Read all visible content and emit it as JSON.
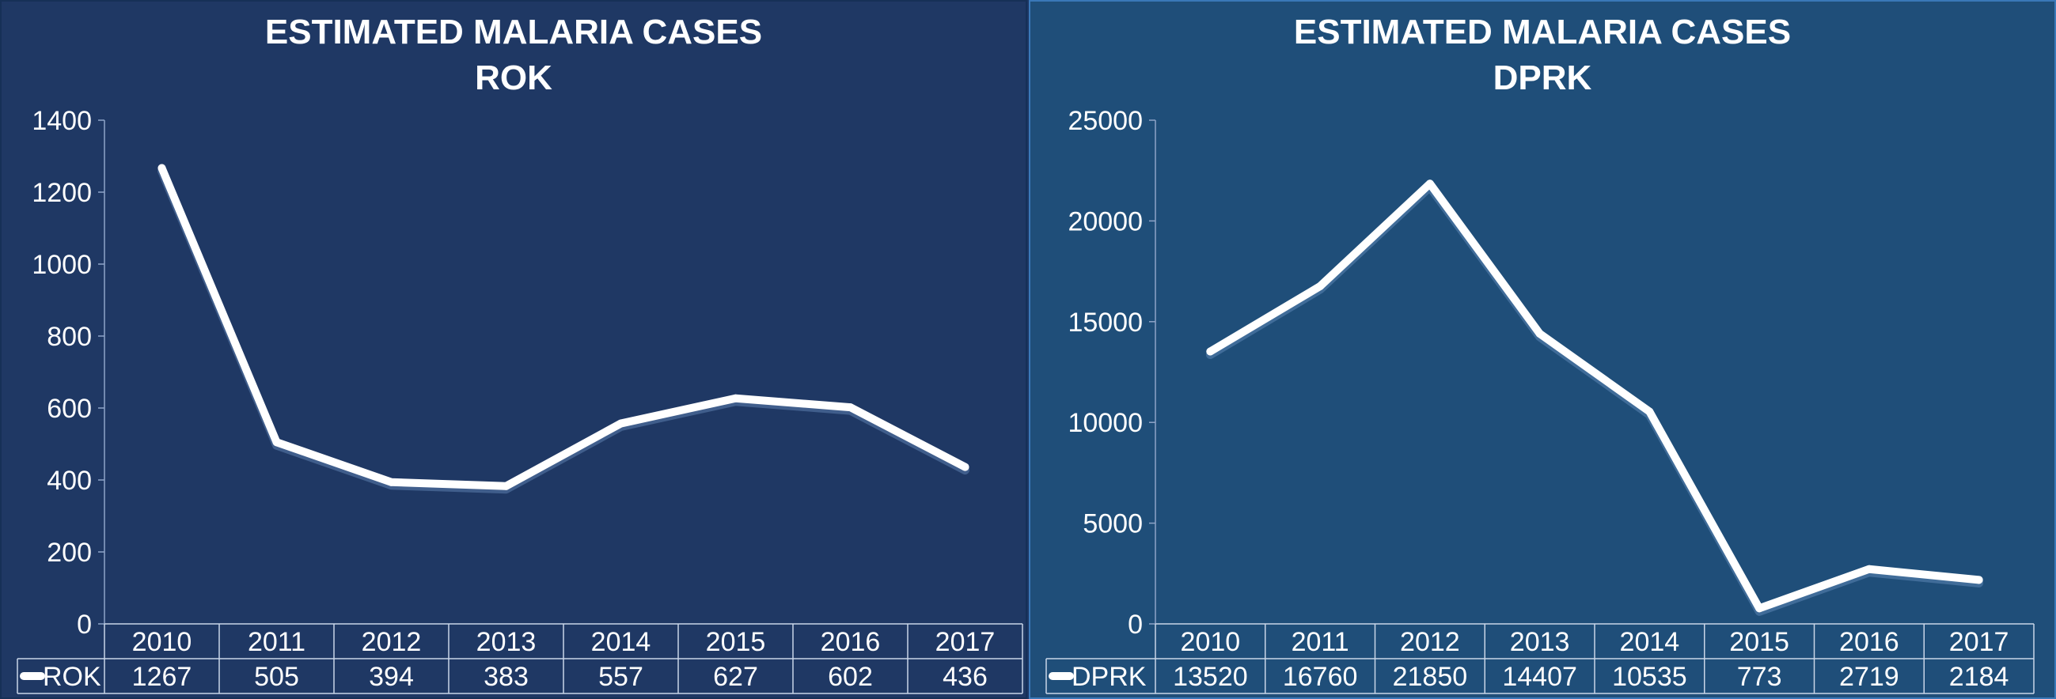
{
  "chart_data": [
    {
      "type": "line",
      "title": "ESTIMATED MALARIA CASES",
      "subtitle": "ROK",
      "categories": [
        "2010",
        "2011",
        "2012",
        "2013",
        "2014",
        "2015",
        "2016",
        "2017"
      ],
      "series": [
        {
          "name": "ROK",
          "values": [
            1267,
            505,
            394,
            383,
            557,
            627,
            602,
            436
          ]
        }
      ],
      "ylim": [
        0,
        1400
      ],
      "yticks": [
        0,
        200,
        400,
        600,
        800,
        1000,
        1200,
        1400
      ],
      "data_table": true,
      "line_color": "#ffffff",
      "background": "#1f3864"
    },
    {
      "type": "line",
      "title": "ESTIMATED MALARIA CASES",
      "subtitle": "DPRK",
      "categories": [
        "2010",
        "2011",
        "2012",
        "2013",
        "2014",
        "2015",
        "2016",
        "2017"
      ],
      "series": [
        {
          "name": "DPRK",
          "values": [
            13520,
            16760,
            21850,
            14407,
            10535,
            773,
            2719,
            2184
          ]
        }
      ],
      "ylim": [
        0,
        25000
      ],
      "yticks": [
        0,
        5000,
        10000,
        15000,
        20000,
        25000
      ],
      "data_table": true,
      "line_color": "#ffffff",
      "background": "#1f4e79"
    }
  ]
}
